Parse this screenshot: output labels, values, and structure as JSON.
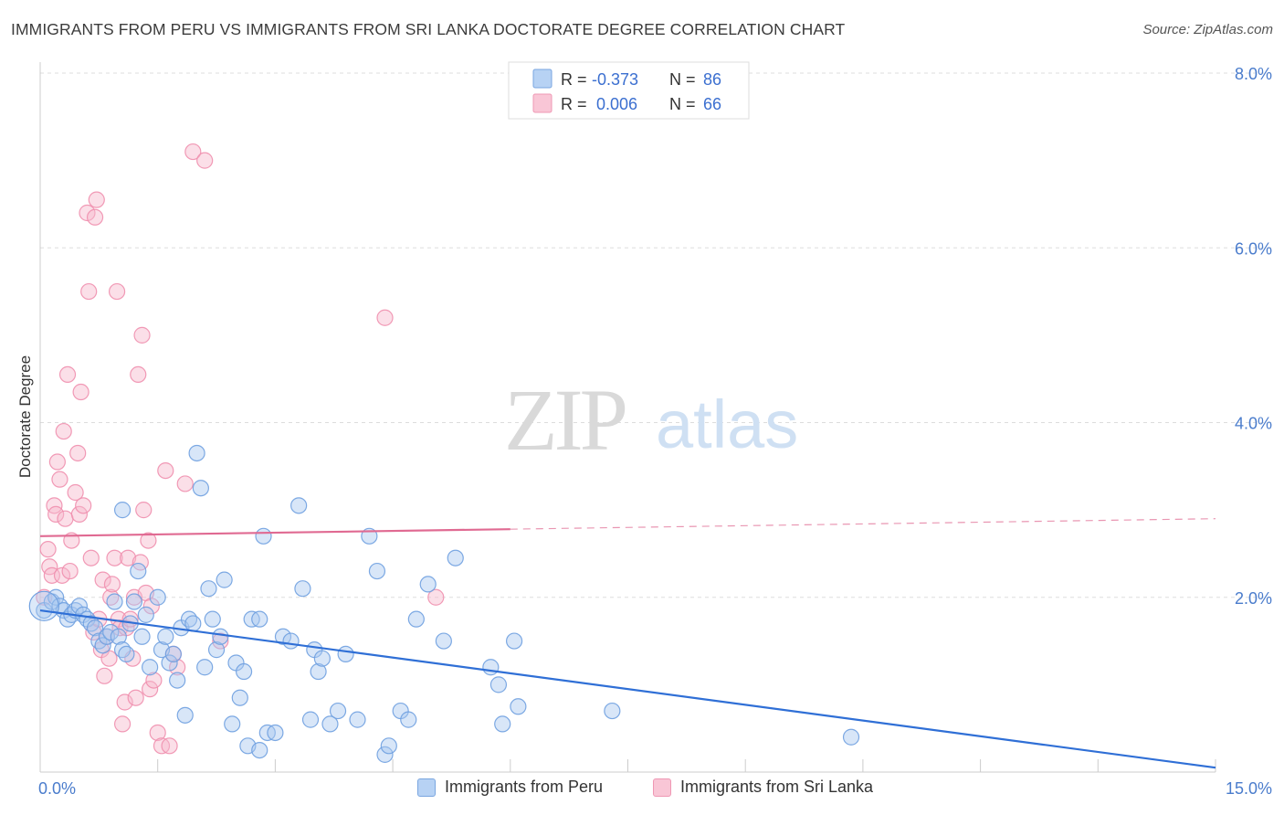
{
  "header": {
    "title": "IMMIGRANTS FROM PERU VS IMMIGRANTS FROM SRI LANKA DOCTORATE DEGREE CORRELATION CHART",
    "source": "Source: ZipAtlas.com"
  },
  "watermark": {
    "zip": "ZIP",
    "atlas": "atlas"
  },
  "colors": {
    "peru_fill": "#a8c8f0",
    "peru_stroke": "#6fa0e0",
    "peru_line": "#2f6fd6",
    "srilanka_fill": "#f7b8cc",
    "srilanka_stroke": "#ef8fae",
    "srilanka_line": "#e06a92",
    "tick_blue": "#4a7ccc",
    "grid": "#dddddd"
  },
  "legend_top": {
    "rows": [
      {
        "r_label": "R =",
        "r_value": "-0.373",
        "n_label": "N =",
        "n_value": "86"
      },
      {
        "r_label": "R =",
        "r_value": "0.006",
        "n_label": "N =",
        "n_value": "66"
      }
    ]
  },
  "legend_bottom": {
    "peru": "Immigrants from Peru",
    "srilanka": "Immigrants from Sri Lanka"
  },
  "chart_data": {
    "type": "scatter",
    "title": "IMMIGRANTS FROM PERU VS IMMIGRANTS FROM SRI LANKA DOCTORATE DEGREE CORRELATION CHART",
    "xlabel": "",
    "ylabel": "Doctorate Degree",
    "xlim": [
      0,
      15
    ],
    "ylim": [
      0,
      8
    ],
    "x_tick_labels": [
      "0.0%",
      "15.0%"
    ],
    "y_ticks": [
      2,
      4,
      6,
      8
    ],
    "y_tick_labels": [
      "2.0%",
      "4.0%",
      "6.0%",
      "8.0%"
    ],
    "grid": true,
    "legend_position": "top-center",
    "series": [
      {
        "name": "Immigrants from Peru",
        "r": -0.373,
        "n": 86,
        "trend": {
          "x": [
            0,
            15
          ],
          "y": [
            1.85,
            0.05
          ]
        },
        "points": [
          [
            0.05,
            1.85
          ],
          [
            0.15,
            1.95
          ],
          [
            0.2,
            2.0
          ],
          [
            0.25,
            1.9
          ],
          [
            0.3,
            1.85
          ],
          [
            0.35,
            1.75
          ],
          [
            0.4,
            1.8
          ],
          [
            0.45,
            1.85
          ],
          [
            0.5,
            1.9
          ],
          [
            0.55,
            1.8
          ],
          [
            0.6,
            1.75
          ],
          [
            0.65,
            1.7
          ],
          [
            0.7,
            1.65
          ],
          [
            0.75,
            1.5
          ],
          [
            0.8,
            1.45
          ],
          [
            0.85,
            1.55
          ],
          [
            0.9,
            1.6
          ],
          [
            0.95,
            1.95
          ],
          [
            1.0,
            1.55
          ],
          [
            1.05,
            1.4
          ],
          [
            1.1,
            1.35
          ],
          [
            1.15,
            1.7
          ],
          [
            1.2,
            1.95
          ],
          [
            1.25,
            2.3
          ],
          [
            1.3,
            1.55
          ],
          [
            1.35,
            1.8
          ],
          [
            1.4,
            1.2
          ],
          [
            1.5,
            2.0
          ],
          [
            1.55,
            1.4
          ],
          [
            1.6,
            1.55
          ],
          [
            1.65,
            1.25
          ],
          [
            1.7,
            1.35
          ],
          [
            1.75,
            1.05
          ],
          [
            1.8,
            1.65
          ],
          [
            1.85,
            0.65
          ],
          [
            1.9,
            1.75
          ],
          [
            1.95,
            1.7
          ],
          [
            2.0,
            3.65
          ],
          [
            2.1,
            1.2
          ],
          [
            2.15,
            2.1
          ],
          [
            2.2,
            1.75
          ],
          [
            2.25,
            1.4
          ],
          [
            2.3,
            1.55
          ],
          [
            2.35,
            2.2
          ],
          [
            2.45,
            0.55
          ],
          [
            2.5,
            1.25
          ],
          [
            2.55,
            0.85
          ],
          [
            2.6,
            1.15
          ],
          [
            2.65,
            0.3
          ],
          [
            2.7,
            1.75
          ],
          [
            2.8,
            1.75
          ],
          [
            2.85,
            2.7
          ],
          [
            2.9,
            0.45
          ],
          [
            3.0,
            0.45
          ],
          [
            3.1,
            1.55
          ],
          [
            3.2,
            1.5
          ],
          [
            3.3,
            3.05
          ],
          [
            3.35,
            2.1
          ],
          [
            3.45,
            0.6
          ],
          [
            3.5,
            1.4
          ],
          [
            3.55,
            1.15
          ],
          [
            3.6,
            1.3
          ],
          [
            3.7,
            0.55
          ],
          [
            3.8,
            0.7
          ],
          [
            3.9,
            1.35
          ],
          [
            4.05,
            0.6
          ],
          [
            4.2,
            2.7
          ],
          [
            4.3,
            2.3
          ],
          [
            4.4,
            0.2
          ],
          [
            4.45,
            0.3
          ],
          [
            4.6,
            0.7
          ],
          [
            4.7,
            0.6
          ],
          [
            4.8,
            1.75
          ],
          [
            4.95,
            2.15
          ],
          [
            5.15,
            1.5
          ],
          [
            5.3,
            2.45
          ],
          [
            5.75,
            1.2
          ],
          [
            5.85,
            1.0
          ],
          [
            5.9,
            0.55
          ],
          [
            6.05,
            1.5
          ],
          [
            6.1,
            0.75
          ],
          [
            7.3,
            0.7
          ],
          [
            10.35,
            0.4
          ],
          [
            2.8,
            0.25
          ],
          [
            1.05,
            3.0
          ],
          [
            2.05,
            3.25
          ]
        ]
      },
      {
        "name": "Immigrants from Sri Lanka",
        "r": 0.006,
        "n": 66,
        "trend": {
          "x": [
            0,
            15
          ],
          "y": [
            2.7,
            2.9
          ]
        },
        "points": [
          [
            0.05,
            2.0
          ],
          [
            0.1,
            2.55
          ],
          [
            0.12,
            2.35
          ],
          [
            0.15,
            2.25
          ],
          [
            0.18,
            3.05
          ],
          [
            0.2,
            2.95
          ],
          [
            0.22,
            3.55
          ],
          [
            0.25,
            3.35
          ],
          [
            0.28,
            2.25
          ],
          [
            0.3,
            3.9
          ],
          [
            0.32,
            2.9
          ],
          [
            0.35,
            4.55
          ],
          [
            0.38,
            2.3
          ],
          [
            0.4,
            2.65
          ],
          [
            0.45,
            3.2
          ],
          [
            0.48,
            3.65
          ],
          [
            0.5,
            2.95
          ],
          [
            0.52,
            4.35
          ],
          [
            0.55,
            3.05
          ],
          [
            0.6,
            6.4
          ],
          [
            0.62,
            5.5
          ],
          [
            0.65,
            2.45
          ],
          [
            0.68,
            1.6
          ],
          [
            0.7,
            6.35
          ],
          [
            0.72,
            6.55
          ],
          [
            0.75,
            1.75
          ],
          [
            0.78,
            1.4
          ],
          [
            0.8,
            2.2
          ],
          [
            0.82,
            1.1
          ],
          [
            0.85,
            1.55
          ],
          [
            0.88,
            1.3
          ],
          [
            0.9,
            2.0
          ],
          [
            0.92,
            2.15
          ],
          [
            0.95,
            2.45
          ],
          [
            0.98,
            5.5
          ],
          [
            1.0,
            1.75
          ],
          [
            1.02,
            1.65
          ],
          [
            1.05,
            0.55
          ],
          [
            1.08,
            0.8
          ],
          [
            1.1,
            1.65
          ],
          [
            1.12,
            2.45
          ],
          [
            1.15,
            1.75
          ],
          [
            1.18,
            1.3
          ],
          [
            1.2,
            2.0
          ],
          [
            1.22,
            0.85
          ],
          [
            1.25,
            4.55
          ],
          [
            1.28,
            2.4
          ],
          [
            1.3,
            5.0
          ],
          [
            1.32,
            3.0
          ],
          [
            1.35,
            2.05
          ],
          [
            1.38,
            2.65
          ],
          [
            1.4,
            0.95
          ],
          [
            1.42,
            1.9
          ],
          [
            1.45,
            1.05
          ],
          [
            1.5,
            0.45
          ],
          [
            1.55,
            0.3
          ],
          [
            1.6,
            3.45
          ],
          [
            1.65,
            0.3
          ],
          [
            1.7,
            1.35
          ],
          [
            1.75,
            1.2
          ],
          [
            1.85,
            3.3
          ],
          [
            1.95,
            7.1
          ],
          [
            2.1,
            7.0
          ],
          [
            2.3,
            1.5
          ],
          [
            4.4,
            5.2
          ],
          [
            5.05,
            2.0
          ]
        ]
      }
    ]
  }
}
